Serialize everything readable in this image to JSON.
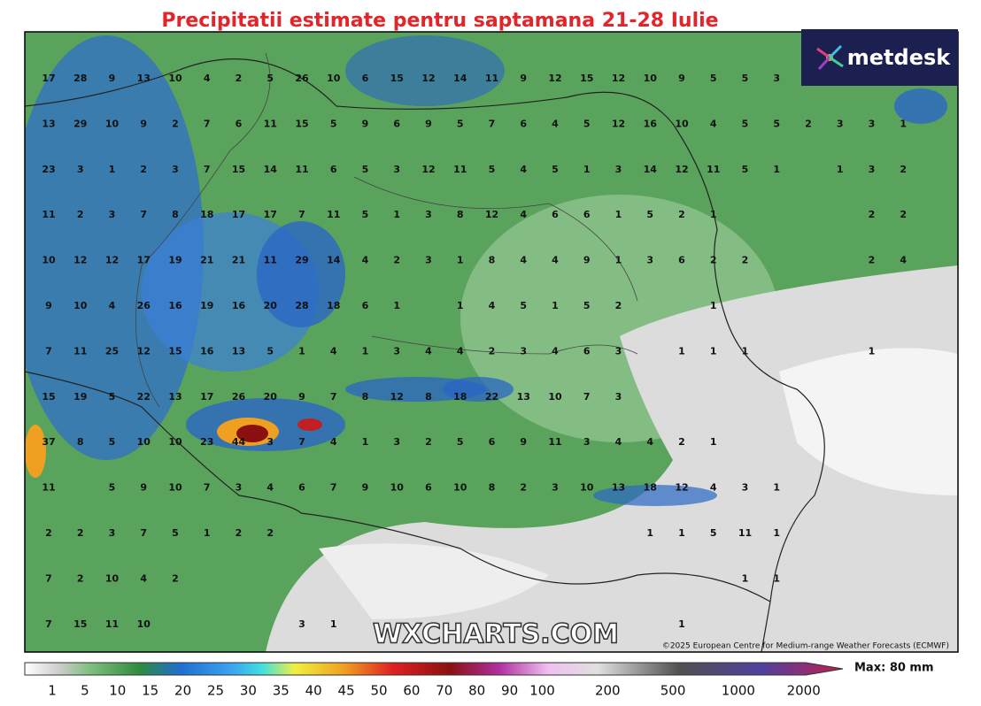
{
  "title": "Precipitatii estimate pentru saptamana 21-28 Iulie",
  "logo": "metdesk",
  "watermark": "WXCHARTS.COM",
  "copyright": "©2025 European Centre for Medium-range Weather Forecasts (ECMWF)",
  "grid_values": [
    [
      17,
      28,
      9,
      13,
      10,
      4,
      2,
      5,
      26,
      10,
      6,
      15,
      12,
      14,
      11,
      9,
      12,
      15,
      12,
      10,
      9,
      5,
      5,
      3,
      null,
      null,
      null,
      null
    ],
    [
      13,
      29,
      10,
      9,
      2,
      7,
      6,
      11,
      15,
      5,
      9,
      6,
      9,
      5,
      7,
      6,
      4,
      5,
      12,
      16,
      10,
      4,
      5,
      5,
      2,
      3,
      3,
      1
    ],
    [
      23,
      3,
      1,
      2,
      3,
      7,
      15,
      14,
      11,
      6,
      5,
      3,
      12,
      11,
      5,
      4,
      5,
      1,
      3,
      14,
      12,
      11,
      5,
      1,
      null,
      1,
      3,
      2
    ],
    [
      11,
      2,
      3,
      7,
      8,
      18,
      17,
      17,
      7,
      11,
      5,
      1,
      3,
      8,
      12,
      4,
      6,
      6,
      1,
      5,
      2,
      1,
      null,
      null,
      null,
      null,
      2,
      2
    ],
    [
      10,
      12,
      12,
      17,
      19,
      21,
      21,
      11,
      29,
      14,
      4,
      2,
      3,
      1,
      8,
      4,
      4,
      9,
      1,
      3,
      6,
      2,
      2,
      null,
      null,
      null,
      2,
      4
    ],
    [
      9,
      10,
      4,
      26,
      16,
      19,
      16,
      20,
      28,
      18,
      6,
      1,
      null,
      1,
      4,
      5,
      1,
      5,
      2,
      null,
      null,
      1,
      null,
      null,
      null,
      null,
      null,
      null
    ],
    [
      7,
      11,
      25,
      12,
      15,
      16,
      13,
      5,
      1,
      4,
      1,
      3,
      4,
      4,
      2,
      3,
      4,
      6,
      3,
      null,
      1,
      1,
      1,
      null,
      null,
      null,
      1,
      null
    ],
    [
      15,
      19,
      5,
      22,
      13,
      17,
      26,
      20,
      9,
      7,
      8,
      12,
      8,
      18,
      22,
      13,
      10,
      7,
      3,
      null,
      null,
      null,
      null,
      null,
      null,
      null,
      null,
      null
    ],
    [
      37,
      8,
      5,
      10,
      10,
      23,
      44,
      3,
      7,
      4,
      1,
      3,
      2,
      5,
      6,
      9,
      11,
      3,
      4,
      4,
      2,
      1,
      null,
      null,
      null,
      null,
      null,
      null
    ],
    [
      11,
      null,
      5,
      9,
      10,
      7,
      3,
      4,
      6,
      7,
      9,
      10,
      6,
      10,
      8,
      2,
      3,
      10,
      13,
      18,
      12,
      4,
      3,
      1,
      null,
      null,
      null,
      null
    ],
    [
      2,
      2,
      3,
      7,
      5,
      1,
      2,
      2,
      null,
      null,
      null,
      null,
      null,
      null,
      null,
      null,
      null,
      null,
      null,
      1,
      1,
      5,
      11,
      1,
      null,
      null,
      null,
      null
    ],
    [
      7,
      2,
      10,
      4,
      2,
      null,
      null,
      null,
      null,
      null,
      null,
      null,
      null,
      null,
      null,
      null,
      null,
      null,
      null,
      null,
      null,
      null,
      1,
      1,
      null,
      null,
      null,
      null
    ],
    [
      7,
      15,
      11,
      10,
      null,
      null,
      null,
      null,
      3,
      1,
      null,
      null,
      null,
      null,
      null,
      null,
      null,
      null,
      null,
      null,
      1,
      null,
      null,
      null,
      null,
      null,
      null,
      null
    ]
  ],
  "colorbar": {
    "ticks": [
      1,
      5,
      10,
      15,
      20,
      25,
      30,
      35,
      40,
      45,
      50,
      60,
      70,
      80,
      90,
      100,
      200,
      500,
      1000,
      2000
    ],
    "max_label": "Max: 80 mm"
  }
}
